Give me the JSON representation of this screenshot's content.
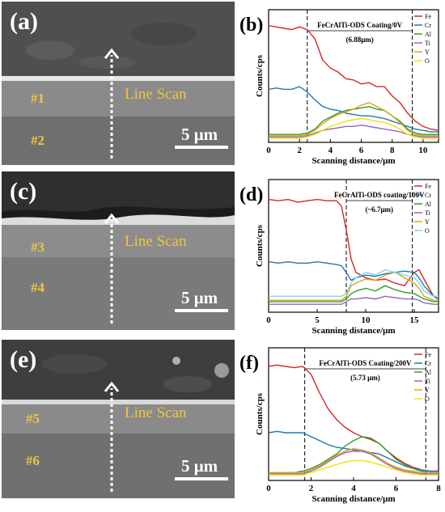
{
  "panels": {
    "a": {
      "label": "(a)",
      "line_scan": "Line Scan",
      "layer_top": "#1",
      "layer_bottom": "#2",
      "scale_bar": "5 μm"
    },
    "c": {
      "label": "(c)",
      "line_scan": "Line Scan",
      "layer_top": "#3",
      "layer_bottom": "#4",
      "scale_bar": "5 μm"
    },
    "e": {
      "label": "(e)",
      "line_scan": "Line Scan",
      "layer_top": "#5",
      "layer_bottom": "#6",
      "scale_bar": "5 μm"
    }
  },
  "chart_data": [
    {
      "panel": "(b)",
      "type": "line",
      "title": "FeCrAlTi-ODS Coating/0V",
      "annotation": "(6.88μm)",
      "xlabel": "Scanning distance/μm",
      "ylabel": "Counts/cps",
      "xlim": [
        0,
        11
      ],
      "xticks": [
        0,
        2,
        4,
        6,
        8,
        10
      ],
      "ylim": [
        0,
        100
      ],
      "markers": [
        2.5,
        9.3
      ],
      "legend_position": "top-right",
      "x": [
        0,
        0.5,
        1,
        1.5,
        2,
        2.5,
        3,
        3.5,
        4,
        4.5,
        5,
        5.5,
        6,
        6.5,
        7,
        7.5,
        8,
        8.5,
        9,
        9.5,
        10,
        10.5,
        11
      ],
      "series": [
        {
          "name": "Fe",
          "color": "#d62728",
          "values": [
            88,
            87,
            86,
            85,
            87,
            85,
            78,
            62,
            56,
            53,
            48,
            47,
            44,
            45,
            42,
            42,
            35,
            30,
            22,
            16,
            12,
            10,
            9
          ]
        },
        {
          "name": "Cr",
          "color": "#1f77b4",
          "values": [
            40,
            41,
            40,
            40,
            42,
            38,
            32,
            27,
            25,
            24,
            22,
            21,
            20,
            20,
            19,
            18,
            16,
            14,
            12,
            10,
            9,
            8,
            8
          ]
        },
        {
          "name": "Al",
          "color": "#2ca02c",
          "values": [
            6,
            6,
            6,
            6,
            6,
            7,
            10,
            16,
            19,
            22,
            24,
            25,
            26,
            27,
            25,
            24,
            20,
            16,
            10,
            7,
            6,
            6,
            6
          ]
        },
        {
          "name": "Ti",
          "color": "#9467bd",
          "values": [
            4,
            4,
            4,
            4,
            4,
            5,
            7,
            9,
            10,
            11,
            12,
            12,
            13,
            12,
            11,
            10,
            9,
            8,
            6,
            5,
            4,
            4,
            4
          ]
        },
        {
          "name": "Y",
          "color": "#e3a21a",
          "values": [
            5,
            5,
            5,
            5,
            5,
            6,
            9,
            14,
            18,
            21,
            23,
            25,
            28,
            30,
            27,
            24,
            20,
            15,
            9,
            6,
            5,
            5,
            5
          ]
        },
        {
          "name": "O",
          "color": "#f2e200",
          "values": [
            3,
            3,
            3,
            3,
            3,
            4,
            6,
            9,
            12,
            14,
            16,
            17,
            18,
            17,
            16,
            15,
            13,
            10,
            6,
            4,
            3,
            3,
            3
          ]
        }
      ]
    },
    {
      "panel": "(d)",
      "type": "line",
      "title": "FeCrAlTi-ODS coating/100V",
      "annotation": "(~6.7μm)",
      "xlabel": "Scanning distance/μm",
      "ylabel": "Counts/cps",
      "xlim": [
        0,
        17.5
      ],
      "xticks": [
        0,
        5,
        10,
        15
      ],
      "ylim": [
        0,
        100
      ],
      "markers": [
        8,
        14.8
      ],
      "legend_position": "top-right",
      "x": [
        0,
        1,
        2,
        3,
        4,
        5,
        6,
        7,
        7.5,
        8,
        8.5,
        9,
        10,
        11,
        12,
        13,
        14,
        15,
        15.5,
        16,
        17,
        17.5
      ],
      "series": [
        {
          "name": "Fe",
          "color": "#d62728",
          "values": [
            85,
            84,
            85,
            83,
            84,
            85,
            84,
            84,
            80,
            62,
            40,
            30,
            26,
            24,
            25,
            22,
            20,
            30,
            32,
            25,
            12,
            10
          ]
        },
        {
          "name": "Cr",
          "color": "#1f77b4",
          "values": [
            38,
            37,
            38,
            37,
            37,
            38,
            37,
            36,
            35,
            30,
            24,
            26,
            28,
            27,
            29,
            30,
            31,
            30,
            26,
            20,
            12,
            10
          ]
        },
        {
          "name": "Al",
          "color": "#2ca02c",
          "values": [
            8,
            8,
            8,
            8,
            8,
            8,
            8,
            8,
            8,
            10,
            14,
            16,
            18,
            16,
            20,
            17,
            15,
            14,
            12,
            10,
            8,
            8
          ]
        },
        {
          "name": "Ti",
          "color": "#9467bd",
          "values": [
            6,
            6,
            6,
            6,
            6,
            6,
            6,
            6,
            6,
            8,
            10,
            10,
            11,
            10,
            12,
            11,
            10,
            10,
            9,
            7,
            6,
            6
          ]
        },
        {
          "name": "Y",
          "color": "#e3a21a",
          "values": [
            9,
            9,
            9,
            9,
            9,
            9,
            9,
            9,
            9,
            12,
            20,
            22,
            25,
            24,
            28,
            30,
            26,
            22,
            18,
            12,
            9,
            9
          ]
        },
        {
          "name": "O",
          "color": "#7fd6e8",
          "values": [
            12,
            12,
            12,
            12,
            12,
            12,
            12,
            12,
            12,
            14,
            22,
            26,
            30,
            28,
            32,
            30,
            28,
            26,
            22,
            16,
            12,
            12
          ]
        }
      ]
    },
    {
      "panel": "(f)",
      "type": "line",
      "title": "FeCrAlTi-ODS Coating/200V",
      "annotation": "(5.73 μm)",
      "xlabel": "Scanning distance/μm",
      "ylabel": "Counts/cps",
      "xlim": [
        0,
        8
      ],
      "xticks": [
        0,
        2,
        4,
        6,
        8
      ],
      "ylim": [
        0,
        100
      ],
      "markers": [
        1.7,
        7.4
      ],
      "legend_position": "top-right",
      "x": [
        0,
        0.4,
        0.8,
        1.2,
        1.6,
        2,
        2.4,
        2.8,
        3.2,
        3.6,
        4,
        4.4,
        4.8,
        5.2,
        5.6,
        6,
        6.4,
        6.8,
        7.2,
        7.6,
        8
      ],
      "series": [
        {
          "name": "Fe",
          "color": "#d62728",
          "values": [
            86,
            87,
            86,
            85,
            86,
            80,
            66,
            54,
            46,
            40,
            36,
            33,
            31,
            28,
            22,
            17,
            13,
            10,
            8,
            7,
            7
          ]
        },
        {
          "name": "Cr",
          "color": "#1f77b4",
          "values": [
            36,
            37,
            36,
            36,
            36,
            33,
            30,
            27,
            25,
            24,
            23,
            22,
            21,
            20,
            17,
            14,
            11,
            9,
            8,
            7,
            7
          ]
        },
        {
          "name": "Al",
          "color": "#2ca02c",
          "values": [
            6,
            6,
            6,
            6,
            7,
            9,
            12,
            16,
            20,
            26,
            30,
            33,
            32,
            28,
            22,
            16,
            12,
            9,
            7,
            6,
            6
          ]
        },
        {
          "name": "Ti",
          "color": "#9467bd",
          "values": [
            5,
            5,
            5,
            5,
            5,
            7,
            10,
            14,
            18,
            21,
            22,
            22,
            20,
            16,
            12,
            9,
            7,
            6,
            5,
            5,
            5
          ]
        },
        {
          "name": "Y",
          "color": "#e3a21a",
          "values": [
            6,
            6,
            6,
            6,
            6,
            8,
            11,
            15,
            19,
            22,
            24,
            23,
            21,
            17,
            13,
            10,
            8,
            7,
            6,
            6,
            6
          ]
        },
        {
          "name": "O",
          "color": "#f2e200",
          "values": [
            4,
            4,
            4,
            4,
            4,
            6,
            8,
            10,
            12,
            14,
            15,
            15,
            14,
            12,
            10,
            8,
            6,
            5,
            4,
            4,
            4
          ]
        }
      ]
    }
  ]
}
